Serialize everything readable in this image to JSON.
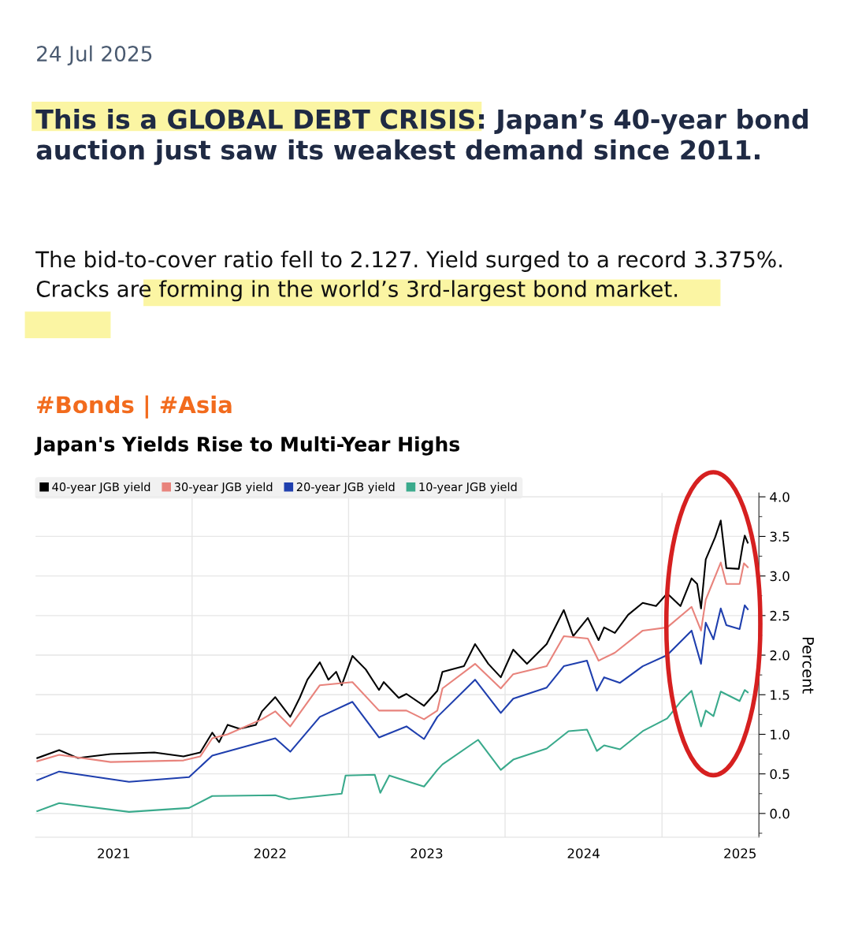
{
  "chart_data": {
    "type": "line",
    "title": "Japan's Yields Rise to Multi-Year Highs",
    "ylabel": "Percent",
    "annotations": [
      "24 Jul 2025",
      "This is a GLOBAL DEBT CRISIS: Japan’s 40-year bond auction just saw its weakest demand since 2011.",
      "The bid-to-cover ratio fell to 2.127. Yield surged to a record 3.375%. Cracks are forming in the world’s 3rd-largest bond market.",
      "#Bonds | #Asia"
    ],
    "xlim": [
      "2021-01-01",
      "2025-08-15"
    ],
    "xticks": [
      {
        "value": "2021-07-02",
        "label": "2021"
      },
      {
        "value": "2022-01-01",
        "label": null
      },
      {
        "value": "2022-07-02",
        "label": "2022"
      },
      {
        "value": "2023-01-01",
        "label": null
      },
      {
        "value": "2023-07-02",
        "label": "2023"
      },
      {
        "value": "2024-01-01",
        "label": null
      },
      {
        "value": "2024-07-02",
        "label": "2024"
      },
      {
        "value": "2025-01-01",
        "label": null
      },
      {
        "value": "2025-07-02",
        "label": "2025"
      }
    ],
    "ylim": [
      -0.3,
      4.05
    ],
    "yticks": [
      {
        "value": -0.25,
        "label": null
      },
      {
        "value": 0,
        "label": "0.0"
      },
      {
        "value": 0.25,
        "label": null
      },
      {
        "value": 0.5,
        "label": "0.5"
      },
      {
        "value": 0.75,
        "label": null
      },
      {
        "value": 1,
        "label": "1.0"
      },
      {
        "value": 1.25,
        "label": null
      },
      {
        "value": 1.5,
        "label": "1.5"
      },
      {
        "value": 1.75,
        "label": null
      },
      {
        "value": 2,
        "label": "2.0"
      },
      {
        "value": 2.25,
        "label": null
      },
      {
        "value": 2.5,
        "label": "2.5"
      },
      {
        "value": 2.75,
        "label": null
      },
      {
        "value": 3,
        "label": "3.0"
      },
      {
        "value": 3.25,
        "label": null
      },
      {
        "value": 3.5,
        "label": "3.5"
      },
      {
        "value": 3.75,
        "label": null
      },
      {
        "value": 4,
        "label": "4.0"
      }
    ],
    "grid": true,
    "legend": "top left",
    "series": [
      {
        "name": "40-year JGB yield",
        "color": "#000000",
        "x": [
          "2021-01-05",
          "2021-02-25",
          "2021-04-10",
          "2021-06-25",
          "2021-10-05",
          "2021-12-12",
          "2022-01-20",
          "2022-02-17",
          "2022-03-05",
          "2022-03-25",
          "2022-04-22",
          "2022-05-30",
          "2022-06-13",
          "2022-07-14",
          "2022-08-18",
          "2022-09-09",
          "2022-09-27",
          "2022-10-26",
          "2022-11-15",
          "2022-12-03",
          "2022-12-16",
          "2023-01-10",
          "2023-02-10",
          "2023-03-13",
          "2023-03-24",
          "2023-04-28",
          "2023-05-16",
          "2023-06-26",
          "2023-07-27",
          "2023-08-08",
          "2023-09-27",
          "2023-10-23",
          "2023-11-23",
          "2023-12-22",
          "2024-01-20",
          "2024-02-21",
          "2024-04-07",
          "2024-05-17",
          "2024-06-08",
          "2024-07-12",
          "2024-08-06",
          "2024-08-19",
          "2024-09-13",
          "2024-10-14",
          "2024-11-17",
          "2024-12-18",
          "2025-01-13",
          "2025-02-13",
          "2025-03-11",
          "2025-03-24",
          "2025-04-02",
          "2025-04-13",
          "2025-05-05",
          "2025-05-18",
          "2025-05-31",
          "2025-06-29",
          "2025-07-08",
          "2025-07-13",
          "2025-07-20"
        ],
        "values": [
          0.7,
          0.8,
          0.7,
          0.75,
          0.77,
          0.72,
          0.77,
          1.02,
          0.9,
          1.12,
          1.07,
          1.12,
          1.29,
          1.47,
          1.22,
          1.46,
          1.69,
          1.91,
          1.69,
          1.79,
          1.62,
          1.99,
          1.82,
          1.56,
          1.66,
          1.46,
          1.51,
          1.36,
          1.55,
          1.79,
          1.86,
          2.14,
          1.89,
          1.72,
          2.07,
          1.89,
          2.14,
          2.57,
          2.24,
          2.47,
          2.19,
          2.35,
          2.28,
          2.51,
          2.66,
          2.62,
          2.78,
          2.62,
          2.97,
          2.9,
          2.59,
          3.21,
          3.49,
          3.7,
          3.1,
          3.09,
          3.38,
          3.51,
          3.42
        ]
      },
      {
        "name": "30-year JGB yield",
        "color": "#e8837c",
        "x": [
          "2021-01-05",
          "2021-02-25",
          "2021-06-25",
          "2021-12-12",
          "2022-01-20",
          "2022-02-17",
          "2022-03-25",
          "2022-06-13",
          "2022-07-14",
          "2022-08-18",
          "2022-10-26",
          "2023-01-10",
          "2023-03-13",
          "2023-05-16",
          "2023-06-26",
          "2023-07-27",
          "2023-08-08",
          "2023-10-23",
          "2023-12-22",
          "2024-01-20",
          "2024-04-07",
          "2024-05-17",
          "2024-07-12",
          "2024-08-06",
          "2024-09-13",
          "2024-11-17",
          "2025-01-13",
          "2025-03-11",
          "2025-04-02",
          "2025-04-13",
          "2025-05-18",
          "2025-05-31",
          "2025-07-01",
          "2025-07-11",
          "2025-07-20"
        ],
        "values": [
          0.66,
          0.74,
          0.65,
          0.67,
          0.72,
          0.95,
          1.0,
          1.19,
          1.29,
          1.1,
          1.62,
          1.66,
          1.3,
          1.3,
          1.19,
          1.3,
          1.58,
          1.89,
          1.58,
          1.76,
          1.86,
          2.24,
          2.21,
          1.93,
          2.03,
          2.31,
          2.35,
          2.61,
          2.31,
          2.7,
          3.17,
          2.9,
          2.9,
          3.16,
          3.11
        ]
      },
      {
        "name": "20-year JGB yield",
        "color": "#1f3fae",
        "x": [
          "2021-01-05",
          "2021-02-25",
          "2021-08-07",
          "2021-12-25",
          "2022-02-17",
          "2022-07-14",
          "2022-08-18",
          "2022-10-26",
          "2023-01-10",
          "2023-03-13",
          "2023-05-16",
          "2023-06-26",
          "2023-07-27",
          "2023-10-23",
          "2023-12-22",
          "2024-01-20",
          "2024-04-07",
          "2024-05-17",
          "2024-07-10",
          "2024-08-02",
          "2024-08-19",
          "2024-09-25",
          "2024-11-17",
          "2025-01-13",
          "2025-03-11",
          "2025-04-02",
          "2025-04-13",
          "2025-05-01",
          "2025-05-18",
          "2025-05-31",
          "2025-07-01",
          "2025-07-13",
          "2025-07-20"
        ],
        "values": [
          0.42,
          0.53,
          0.4,
          0.46,
          0.73,
          0.95,
          0.78,
          1.22,
          1.41,
          0.96,
          1.1,
          0.94,
          1.22,
          1.69,
          1.27,
          1.45,
          1.59,
          1.86,
          1.93,
          1.55,
          1.72,
          1.65,
          1.86,
          2.0,
          2.31,
          1.89,
          2.41,
          2.2,
          2.59,
          2.38,
          2.33,
          2.63,
          2.58
        ]
      },
      {
        "name": "10-year JGB yield",
        "color": "#3aaa8c",
        "x": [
          "2021-01-05",
          "2021-02-25",
          "2021-08-07",
          "2021-12-25",
          "2022-02-17",
          "2022-07-14",
          "2022-08-15",
          "2022-12-16",
          "2022-12-25",
          "2023-03-03",
          "2023-03-16",
          "2023-04-06",
          "2023-05-16",
          "2023-06-26",
          "2023-07-27",
          "2023-08-08",
          "2023-10-30",
          "2023-12-22",
          "2024-01-20",
          "2024-04-07",
          "2024-05-28",
          "2024-07-10",
          "2024-08-02",
          "2024-08-19",
          "2024-09-25",
          "2024-11-17",
          "2025-01-13",
          "2025-02-13",
          "2025-03-11",
          "2025-04-02",
          "2025-04-13",
          "2025-05-01",
          "2025-05-18",
          "2025-07-01",
          "2025-07-13",
          "2025-07-20"
        ],
        "values": [
          0.03,
          0.13,
          0.02,
          0.07,
          0.22,
          0.23,
          0.18,
          0.25,
          0.48,
          0.49,
          0.26,
          0.48,
          0.41,
          0.34,
          0.55,
          0.62,
          0.93,
          0.55,
          0.68,
          0.82,
          1.04,
          1.06,
          0.79,
          0.86,
          0.81,
          1.04,
          1.2,
          1.41,
          1.55,
          1.1,
          1.3,
          1.23,
          1.54,
          1.42,
          1.56,
          1.53
        ]
      }
    ]
  }
}
